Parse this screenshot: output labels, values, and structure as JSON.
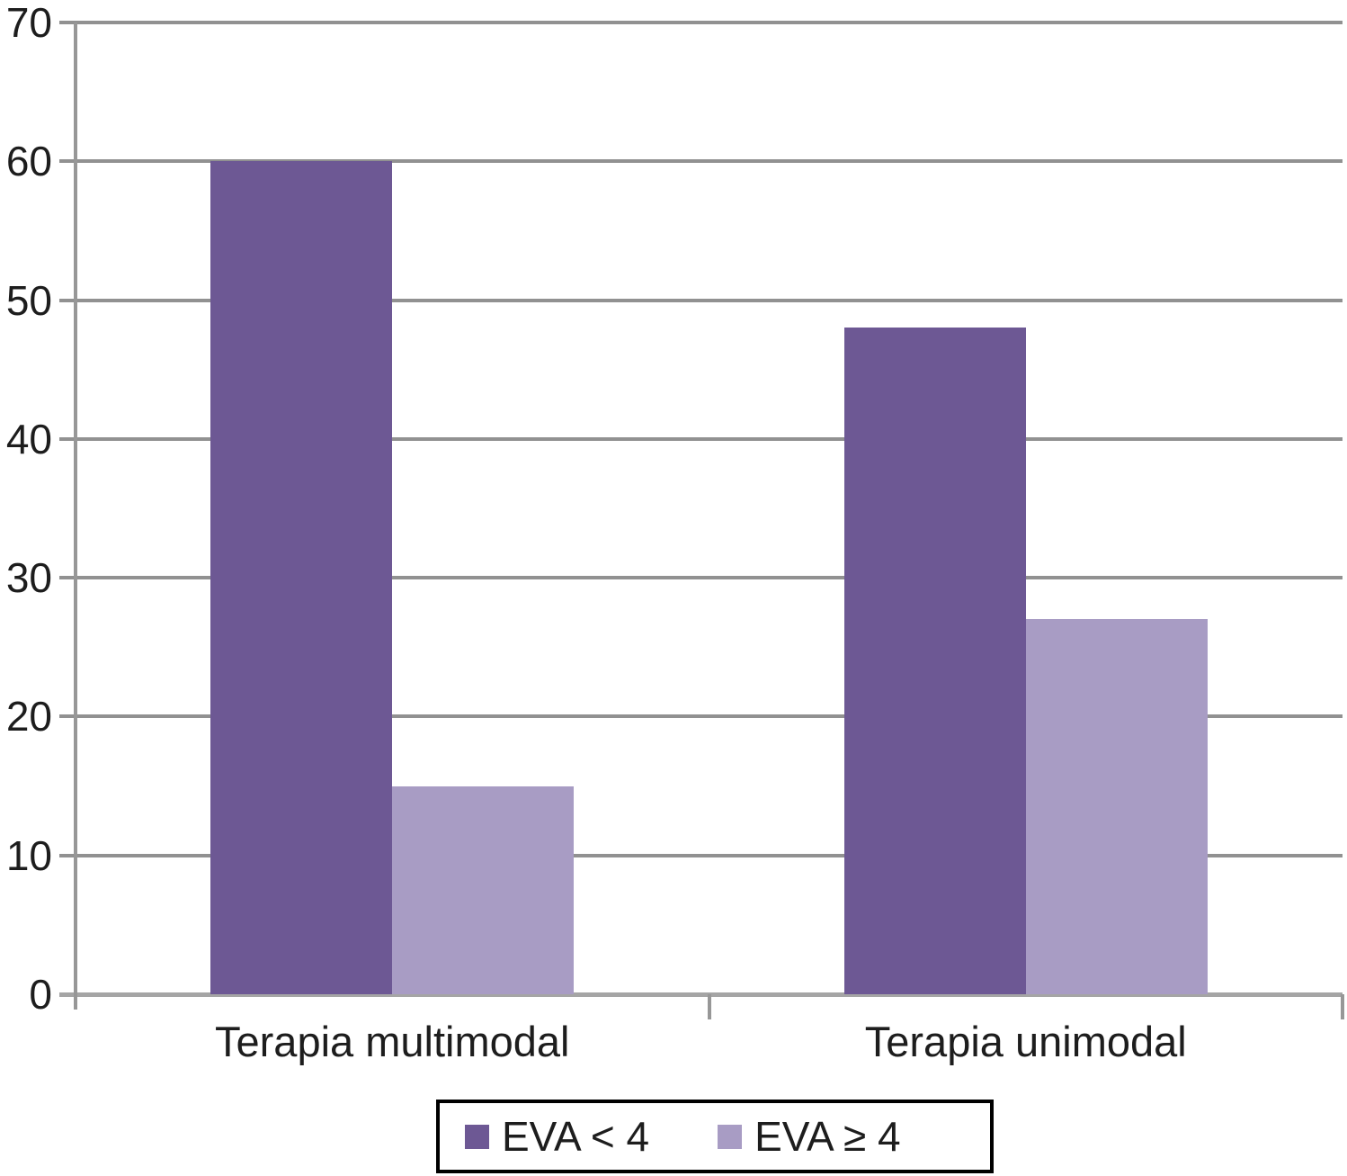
{
  "chart_data": {
    "type": "bar",
    "categories": [
      "Terapia multimodal",
      "Terapia unimodal"
    ],
    "series": [
      {
        "name": "EVA < 4",
        "color": "#6d5894",
        "values": [
          60,
          48
        ]
      },
      {
        "name": "EVA ≥ 4",
        "color": "#a89cc4",
        "values": [
          15,
          27
        ]
      }
    ],
    "title": "",
    "xlabel": "",
    "ylabel": "",
    "ylim": [
      0,
      70
    ],
    "yticks": [
      0,
      10,
      20,
      30,
      40,
      50,
      60,
      70
    ],
    "grid": true,
    "legend_position": "bottom-center",
    "colors": {
      "gridline": "#919191",
      "axis": "#979797",
      "text": "#1d1d1d",
      "legend_border": "#000000",
      "background": "#ffffff"
    }
  }
}
